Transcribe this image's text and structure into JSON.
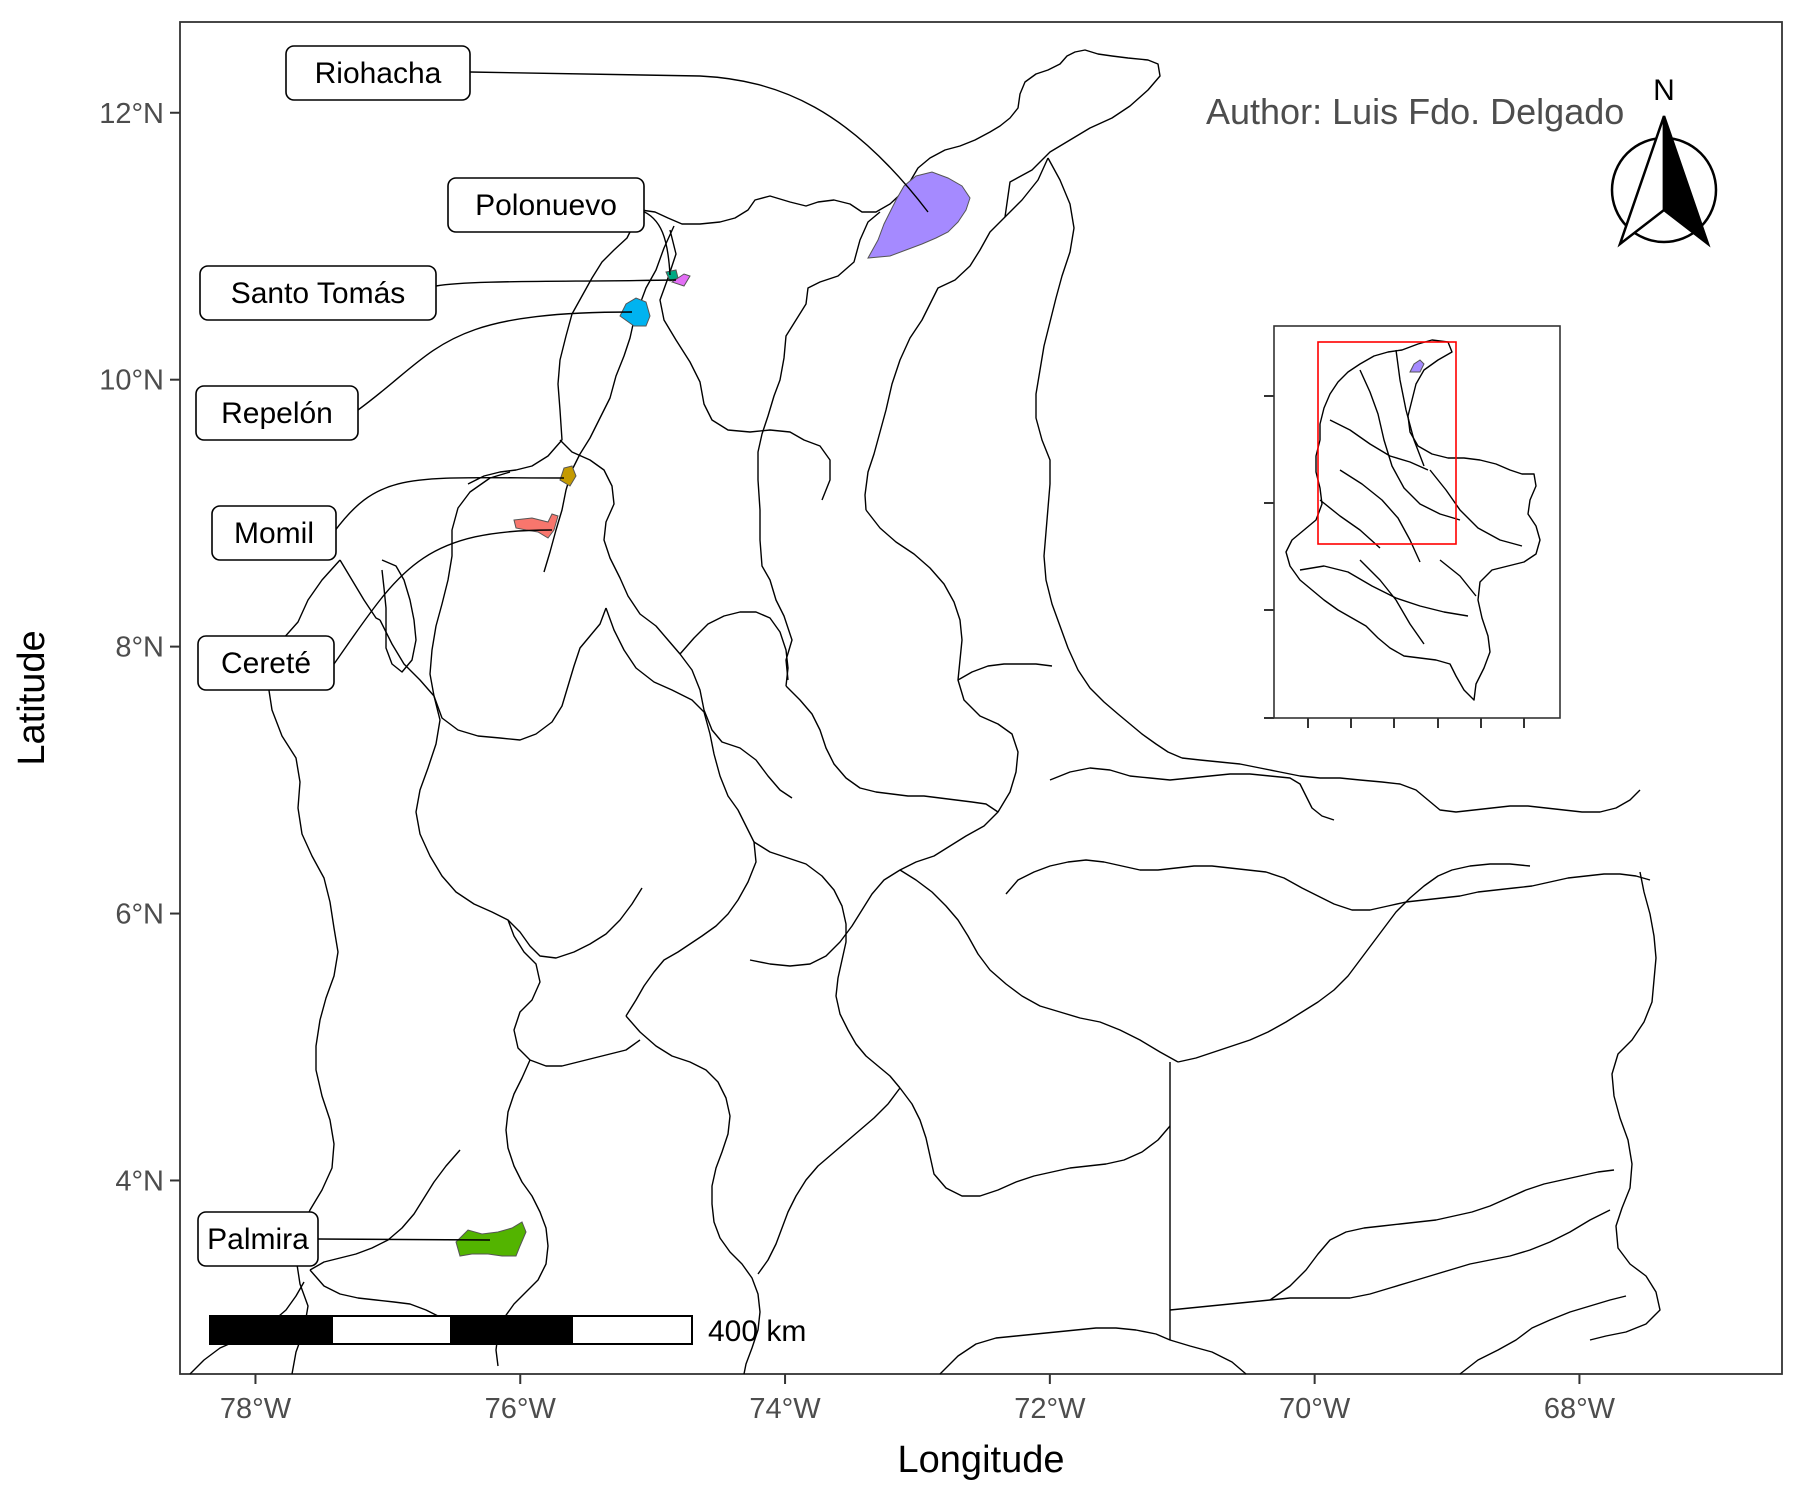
{
  "axes": {
    "x_title": "Longitude",
    "y_title": "Latitude",
    "x_ticks": [
      {
        "lon": -78,
        "label": "78°W"
      },
      {
        "lon": -76,
        "label": "76°W"
      },
      {
        "lon": -74,
        "label": "74°W"
      },
      {
        "lon": -72,
        "label": "72°W"
      },
      {
        "lon": -70,
        "label": "70°W"
      },
      {
        "lon": -68,
        "label": "68°W"
      }
    ],
    "y_ticks": [
      {
        "lat": 12,
        "label": "12°N"
      },
      {
        "lat": 10,
        "label": "10°N"
      },
      {
        "lat": 8,
        "label": "8°N"
      },
      {
        "lat": 6,
        "label": "6°N"
      },
      {
        "lat": 4,
        "label": "4°N"
      }
    ],
    "lon_range": [
      -78.57,
      -66.47
    ],
    "lat_range": [
      2.55,
      12.68
    ]
  },
  "author": "Author: Luis Fdo. Delgado",
  "north_arrow": {
    "letter": "N",
    "icon": "north-arrow-icon"
  },
  "scale_bar": {
    "label": "400 km",
    "segments": 4
  },
  "municipalities": [
    {
      "name": "Riohacha",
      "lon": -72.93,
      "lat": 11.25,
      "color": "#A58AFF"
    },
    {
      "name": "Polonuevo",
      "lon": -74.85,
      "lat": 10.78,
      "color": "#00A983"
    },
    {
      "name": "Santo Tomás",
      "lon": -74.77,
      "lat": 10.76,
      "color": "#E36EF6"
    },
    {
      "name": "Repelón",
      "lon": -75.12,
      "lat": 10.49,
      "color": "#00B3F0"
    },
    {
      "name": "Momil",
      "lon": -75.68,
      "lat": 9.24,
      "color": "#C49A00"
    },
    {
      "name": "Cereté",
      "lon": -75.79,
      "lat": 8.88,
      "color": "#F8766D"
    },
    {
      "name": "Palmira",
      "lon": -76.16,
      "lat": 3.56,
      "color": "#53B400"
    }
  ],
  "inset": {
    "highlight_color": "#FF0000"
  }
}
